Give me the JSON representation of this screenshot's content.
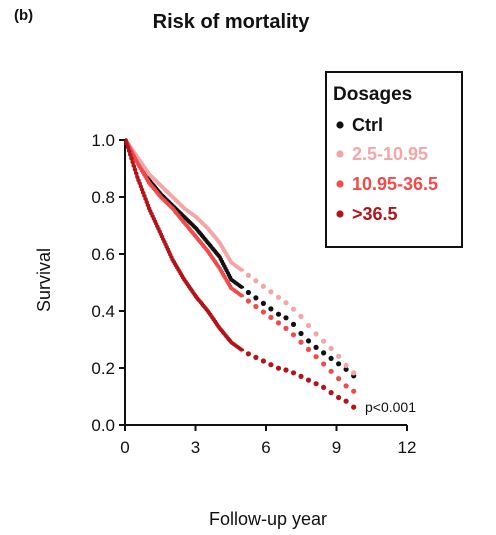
{
  "chart_data": {
    "type": "line",
    "panel_label": "(b)",
    "title": "Risk of mortality",
    "xlabel": "Follow-up year",
    "ylabel": "Survival",
    "xlim": [
      0,
      12
    ],
    "ylim": [
      0,
      1
    ],
    "xticks": [
      "0",
      "3",
      "6",
      "9",
      "12"
    ],
    "yticks": [
      "0.0",
      "0.2",
      "0.4",
      "0.6",
      "0.8",
      "1.0"
    ],
    "grid": false,
    "legend": {
      "title": "Dosages",
      "placement": "top-right"
    },
    "annotation": "p<0.001",
    "series": [
      {
        "name": "Ctrl",
        "color": "#111111",
        "points": [
          [
            0,
            1.0
          ],
          [
            0.5,
            0.93
          ],
          [
            1,
            0.86
          ],
          [
            1.5,
            0.81
          ],
          [
            2,
            0.77
          ],
          [
            2.5,
            0.73
          ],
          [
            3,
            0.69
          ],
          [
            3.5,
            0.64
          ],
          [
            4,
            0.59
          ],
          [
            4.5,
            0.51
          ],
          [
            5,
            0.48
          ],
          [
            5.5,
            0.45
          ],
          [
            6,
            0.42
          ],
          [
            6.5,
            0.39
          ],
          [
            7,
            0.37
          ],
          [
            7.5,
            0.32
          ],
          [
            8,
            0.28
          ],
          [
            8.5,
            0.25
          ],
          [
            9,
            0.22
          ],
          [
            9.5,
            0.19
          ],
          [
            9.9,
            0.16
          ]
        ]
      },
      {
        "name": "2.5-10.95",
        "color": "#f4a5a5",
        "points": [
          [
            0,
            1.0
          ],
          [
            0.5,
            0.94
          ],
          [
            1,
            0.88
          ],
          [
            1.5,
            0.84
          ],
          [
            2,
            0.8
          ],
          [
            2.5,
            0.76
          ],
          [
            3,
            0.73
          ],
          [
            3.5,
            0.69
          ],
          [
            4,
            0.64
          ],
          [
            4.5,
            0.57
          ],
          [
            5,
            0.54
          ],
          [
            5.5,
            0.51
          ],
          [
            6,
            0.48
          ],
          [
            6.5,
            0.45
          ],
          [
            7,
            0.42
          ],
          [
            7.5,
            0.38
          ],
          [
            8,
            0.33
          ],
          [
            8.5,
            0.29
          ],
          [
            9,
            0.25
          ],
          [
            9.5,
            0.2
          ],
          [
            9.9,
            0.17
          ]
        ]
      },
      {
        "name": "10.95-36.5",
        "color": "#f04a4a",
        "points": [
          [
            0,
            1.0
          ],
          [
            0.5,
            0.92
          ],
          [
            1,
            0.85
          ],
          [
            1.5,
            0.8
          ],
          [
            2,
            0.76
          ],
          [
            2.5,
            0.71
          ],
          [
            3,
            0.66
          ],
          [
            3.5,
            0.61
          ],
          [
            4,
            0.55
          ],
          [
            4.5,
            0.48
          ],
          [
            5,
            0.45
          ],
          [
            5.5,
            0.42
          ],
          [
            6,
            0.39
          ],
          [
            6.5,
            0.36
          ],
          [
            7,
            0.33
          ],
          [
            7.5,
            0.29
          ],
          [
            8,
            0.25
          ],
          [
            8.5,
            0.21
          ],
          [
            9,
            0.17
          ],
          [
            9.5,
            0.13
          ],
          [
            9.9,
            0.11
          ]
        ]
      },
      {
        "name": ">36.5",
        "color": "#b3141b",
        "points": [
          [
            0,
            1.0
          ],
          [
            0.5,
            0.87
          ],
          [
            1,
            0.76
          ],
          [
            1.5,
            0.67
          ],
          [
            2,
            0.58
          ],
          [
            2.5,
            0.51
          ],
          [
            3,
            0.45
          ],
          [
            3.5,
            0.4
          ],
          [
            4,
            0.34
          ],
          [
            4.5,
            0.29
          ],
          [
            5,
            0.26
          ],
          [
            5.5,
            0.24
          ],
          [
            6,
            0.22
          ],
          [
            6.5,
            0.2
          ],
          [
            7,
            0.19
          ],
          [
            7.5,
            0.17
          ],
          [
            8,
            0.15
          ],
          [
            8.5,
            0.13
          ],
          [
            9,
            0.1
          ],
          [
            9.5,
            0.08
          ],
          [
            9.9,
            0.05
          ]
        ]
      }
    ]
  }
}
